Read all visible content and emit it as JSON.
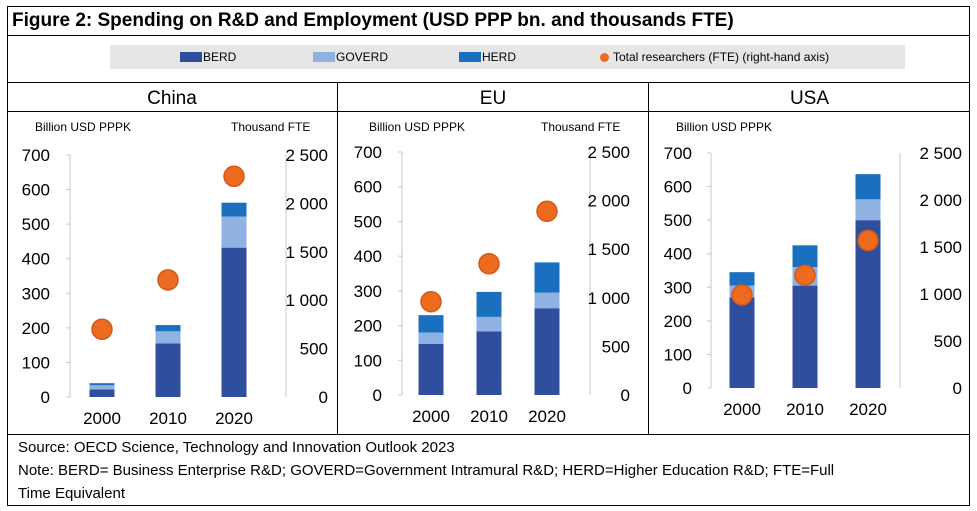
{
  "figure_title": "Figure 2: Spending on R&D and Employment (USD PPP bn. and thousands FTE)",
  "legend": [
    {
      "label": "BERD",
      "color": "#2F4F9E",
      "kind": "bar"
    },
    {
      "label": "GOVERD",
      "color": "#8FB2E2",
      "kind": "bar"
    },
    {
      "label": "HERD",
      "color": "#1A6FBF",
      "kind": "bar"
    },
    {
      "label": "Total researchers (FTE) (right-hand axis)",
      "color": "#ED6B1E",
      "kind": "dot"
    }
  ],
  "source": "Source: OECD Science, Technology and Innovation Outlook 2023",
  "note_line1": "Note: BERD= Business Enterprise R&D; GOVERD=Government Intramural R&D; HERD=Higher Education R&D; FTE=Full",
  "note_line2": "Time Equivalent",
  "chart_data": [
    {
      "type": "bar",
      "title": "China",
      "ylabel": "Billion USD PPPK",
      "y2label": "Thousand FTE",
      "categories": [
        "2000",
        "2010",
        "2020"
      ],
      "ylim": [
        0,
        700
      ],
      "yticks": [
        "0",
        "100",
        "200",
        "300",
        "400",
        "500",
        "600",
        "700"
      ],
      "y2lim": [
        0,
        2500
      ],
      "y2ticks": [
        "0",
        "500",
        "1 000",
        "1 500",
        "2 000",
        "2 500"
      ],
      "series": [
        {
          "name": "BERD",
          "values": [
            22,
            155,
            432
          ]
        },
        {
          "name": "GOVERD",
          "values": [
            12,
            35,
            90
          ]
        },
        {
          "name": "HERD",
          "values": [
            6,
            18,
            40
          ]
        }
      ],
      "researchers": [
        700,
        1210,
        2280
      ]
    },
    {
      "type": "bar",
      "title": "EU",
      "ylabel": "Billion USD PPPK",
      "y2label": "Thousand FTE",
      "categories": [
        "2000",
        "2010",
        "2020"
      ],
      "ylim": [
        0,
        700
      ],
      "yticks": [
        "0",
        "100",
        "200",
        "300",
        "400",
        "500",
        "600",
        "700"
      ],
      "y2lim": [
        0,
        2500
      ],
      "y2ticks": [
        "0",
        "500",
        "1 000",
        "1 500",
        "2 000",
        "2 500"
      ],
      "series": [
        {
          "name": "BERD",
          "values": [
            147,
            183,
            250
          ]
        },
        {
          "name": "GOVERD",
          "values": [
            33,
            42,
            45
          ]
        },
        {
          "name": "HERD",
          "values": [
            50,
            72,
            87
          ]
        }
      ],
      "researchers": [
        960,
        1350,
        1890
      ]
    },
    {
      "type": "bar",
      "title": "USA",
      "ylabel": "Billion USD PPPK",
      "y2label": "",
      "categories": [
        "2000",
        "2010",
        "2020"
      ],
      "ylim": [
        0,
        700
      ],
      "yticks": [
        "0",
        "100",
        "200",
        "300",
        "400",
        "500",
        "600",
        "700"
      ],
      "y2lim": [
        0,
        2500
      ],
      "y2ticks": [
        "0",
        "500",
        "1 000",
        "1 500",
        "2 000",
        "2 500"
      ],
      "series": [
        {
          "name": "BERD",
          "values": [
            270,
            305,
            500
          ]
        },
        {
          "name": "GOVERD",
          "values": [
            35,
            55,
            62
          ]
        },
        {
          "name": "HERD",
          "values": [
            40,
            65,
            75
          ]
        }
      ],
      "researchers": [
        990,
        1200,
        1570
      ]
    }
  ]
}
